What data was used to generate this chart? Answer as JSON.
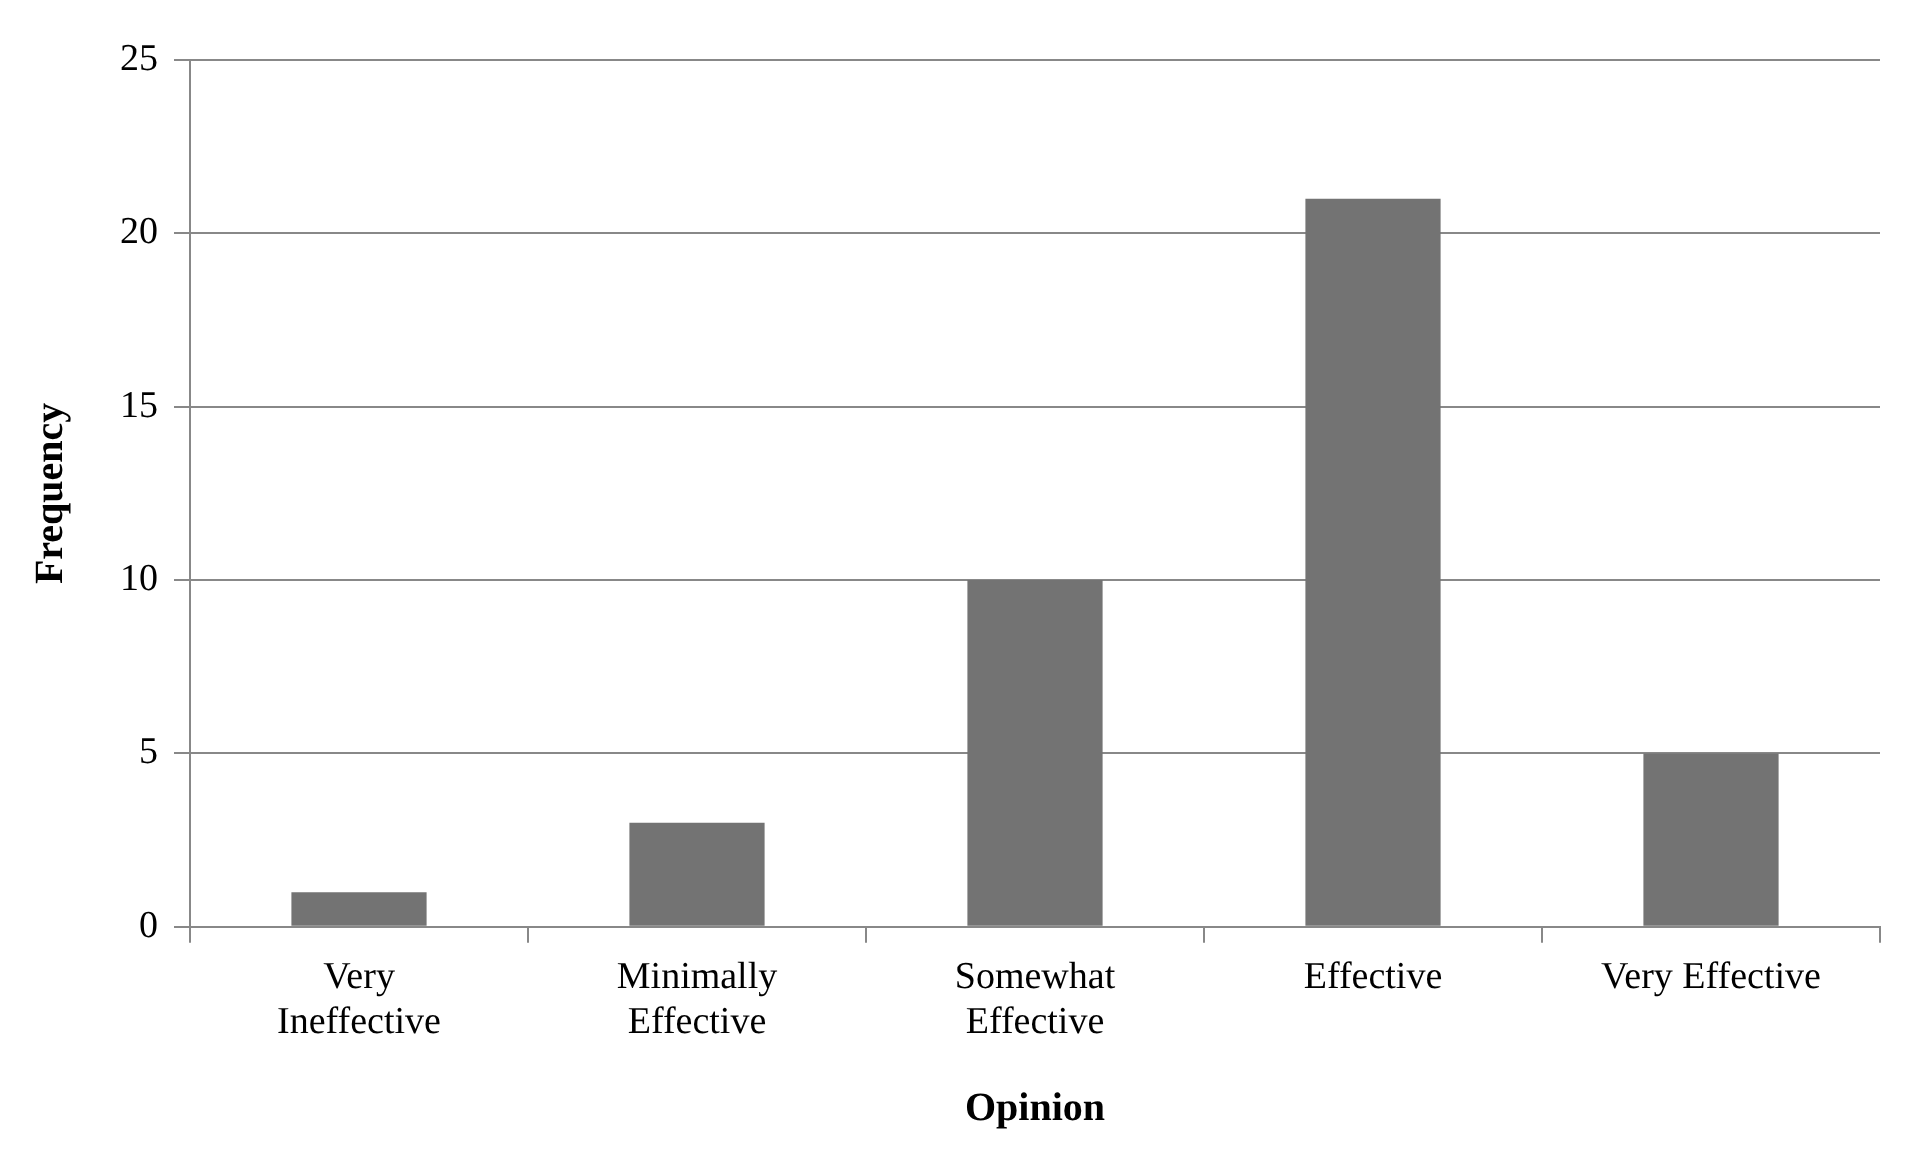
{
  "chart_data": {
    "type": "bar",
    "xlabel": "Opinion",
    "ylabel": "Frequency",
    "categories": [
      "Very\nIneffective",
      "Minimally\nEffective",
      "Somewhat\nEffective",
      "Effective",
      "Very Effective"
    ],
    "values": [
      1,
      3,
      10,
      21,
      5
    ],
    "color": "#737373",
    "ylim": [
      0,
      25
    ],
    "yticks": [
      0,
      5,
      10,
      15,
      20,
      25
    ],
    "grid": "y",
    "legend": false
  }
}
